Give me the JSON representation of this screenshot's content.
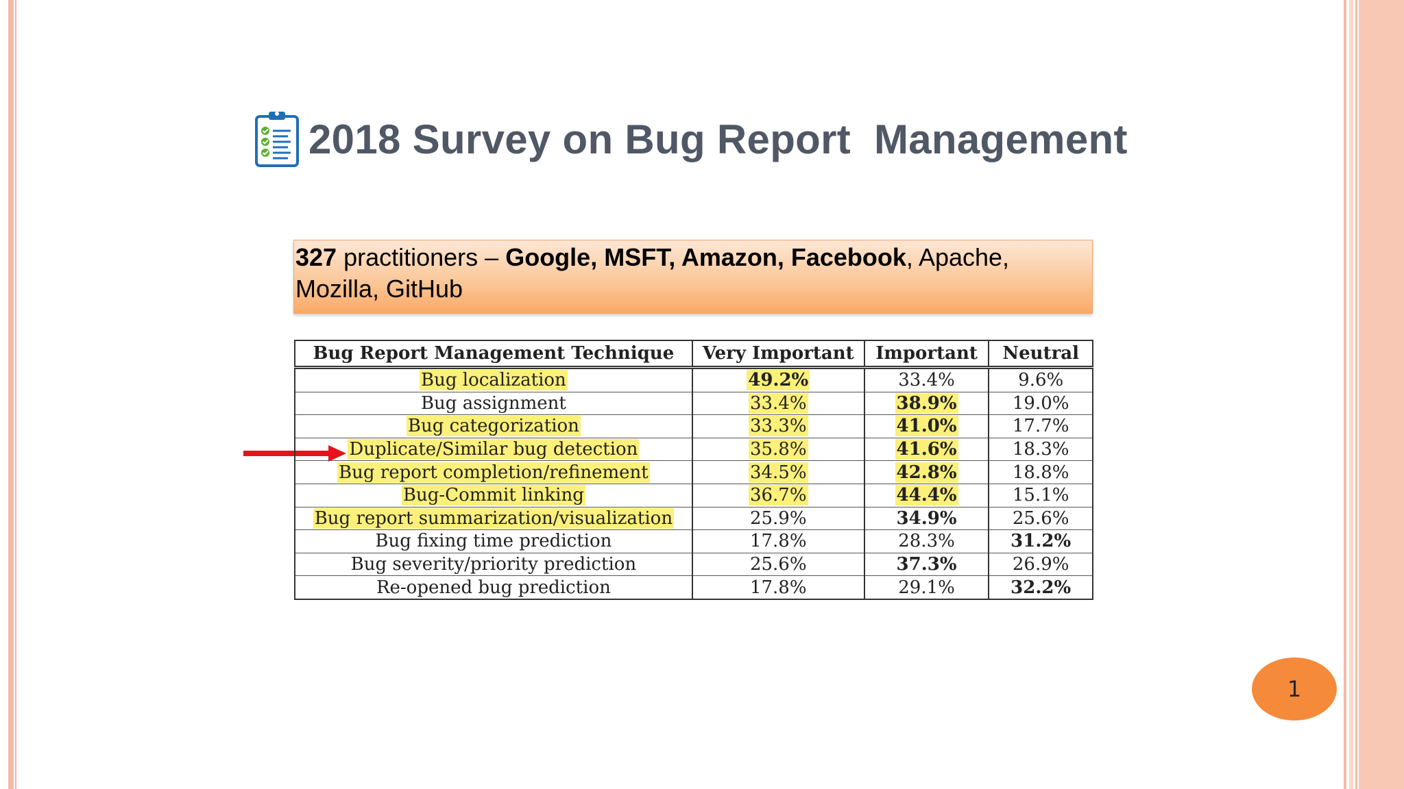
{
  "slide": {
    "title": "2018 Survey on Bug Report  Management",
    "page_number": "1"
  },
  "info": {
    "count": "327",
    "text_a": " practitioners – ",
    "companies_bold": "Google, MSFT, Amazon,  Facebook",
    "text_b": ", Apache,",
    "line2": "Mozilla, GitHub"
  },
  "table": {
    "headers": [
      "Bug Report Management Technique",
      "Very Important",
      "Important",
      "Neutral"
    ],
    "rows": [
      [
        "Bug localization",
        "49.2%",
        "33.4%",
        "9.6%"
      ],
      [
        "Bug assignment",
        "33.4%",
        "38.9%",
        "19.0%"
      ],
      [
        "Bug categorization",
        "33.3%",
        "41.0%",
        "17.7%"
      ],
      [
        "Duplicate/Similar bug detection",
        "35.8%",
        "41.6%",
        "18.3%"
      ],
      [
        "Bug report completion/refinement",
        "34.5%",
        "42.8%",
        "18.8%"
      ],
      [
        "Bug-Commit linking",
        "36.7%",
        "44.4%",
        "15.1%"
      ],
      [
        "Bug report summarization/visualization",
        "25.9%",
        "34.9%",
        "25.6%"
      ],
      [
        "Bug fixing time prediction",
        "17.8%",
        "28.3%",
        "31.2%"
      ],
      [
        "Bug severity/priority prediction",
        "25.6%",
        "37.3%",
        "26.9%"
      ],
      [
        "Re-opened bug prediction",
        "17.8%",
        "29.1%",
        "32.2%"
      ]
    ]
  },
  "colors": {
    "title": "#505866",
    "highlight": "#fbf079",
    "arrow": "#e8121b",
    "page_badge": "#f58a3a",
    "border": "#f6b9a6"
  },
  "icons": {
    "title_icon": "clipboard-checklist-icon",
    "arrow": "red-arrow-right"
  }
}
